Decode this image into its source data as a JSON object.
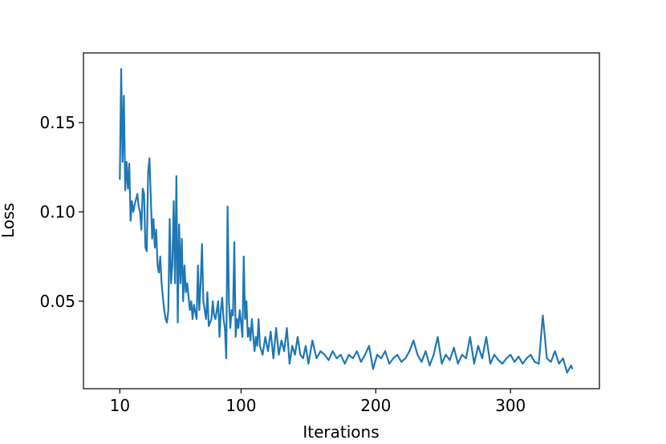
{
  "chart_data": {
    "type": "line",
    "x_label": "Iterations",
    "y_label": "Loss",
    "x": [
      10,
      11,
      12,
      13,
      14,
      15,
      16,
      17,
      18,
      19,
      20,
      21,
      23,
      24,
      25,
      26,
      27,
      28,
      29,
      30,
      31,
      32,
      33,
      34,
      35,
      36,
      37,
      38,
      39,
      40,
      41,
      42,
      43,
      44,
      45,
      46,
      47,
      48,
      49,
      50,
      51,
      52,
      53,
      54,
      55,
      56,
      57,
      58,
      59,
      60,
      62,
      63,
      64,
      65,
      67,
      68,
      69,
      70,
      71,
      72,
      73,
      74,
      75,
      76,
      77,
      78,
      79,
      80,
      81,
      83,
      84,
      85,
      86,
      87,
      88,
      89,
      90,
      91,
      92,
      93,
      94,
      95,
      96,
      97,
      98,
      99,
      100,
      101,
      102,
      103,
      104,
      105,
      106,
      107,
      108,
      110,
      111,
      112,
      113,
      114,
      116,
      118,
      120,
      122,
      124,
      126,
      128,
      130,
      132,
      134,
      136,
      138,
      140,
      142,
      144,
      146,
      148,
      150,
      153,
      156,
      159,
      162,
      165,
      168,
      171,
      174,
      177,
      180,
      183,
      186,
      189,
      192,
      195,
      198,
      201,
      204,
      207,
      210,
      213,
      216,
      219,
      222,
      225,
      228,
      231,
      234,
      237,
      240,
      243,
      246,
      249,
      252,
      255,
      258,
      261,
      264,
      267,
      270,
      273,
      276,
      279,
      282,
      285,
      288,
      291,
      294,
      297,
      300,
      303,
      306,
      309,
      312,
      315,
      318,
      321,
      324,
      327,
      330,
      333,
      336,
      339,
      342,
      345,
      346
    ],
    "series": [
      {
        "name": "Loss",
        "color": "#1f77b4",
        "values": [
          0.118,
          0.18,
          0.128,
          0.165,
          0.112,
          0.128,
          0.113,
          0.127,
          0.095,
          0.106,
          0.1,
          0.104,
          0.11,
          0.103,
          0.1,
          0.09,
          0.113,
          0.11,
          0.08,
          0.078,
          0.122,
          0.13,
          0.108,
          0.085,
          0.096,
          0.08,
          0.09,
          0.07,
          0.066,
          0.075,
          0.06,
          0.052,
          0.045,
          0.04,
          0.038,
          0.045,
          0.096,
          0.06,
          0.07,
          0.106,
          0.06,
          0.12,
          0.038,
          0.093,
          0.06,
          0.085,
          0.05,
          0.07,
          0.055,
          0.06,
          0.045,
          0.05,
          0.04,
          0.048,
          0.04,
          0.07,
          0.045,
          0.06,
          0.082,
          0.05,
          0.045,
          0.04,
          0.055,
          0.036,
          0.038,
          0.04,
          0.05,
          0.042,
          0.04,
          0.05,
          0.03,
          0.045,
          0.052,
          0.04,
          0.035,
          0.018,
          0.103,
          0.05,
          0.035,
          0.045,
          0.042,
          0.083,
          0.03,
          0.04,
          0.035,
          0.045,
          0.038,
          0.03,
          0.075,
          0.04,
          0.05,
          0.03,
          0.035,
          0.028,
          0.04,
          0.022,
          0.03,
          0.025,
          0.04,
          0.025,
          0.02,
          0.03,
          0.022,
          0.033,
          0.018,
          0.035,
          0.02,
          0.028,
          0.022,
          0.035,
          0.015,
          0.025,
          0.02,
          0.03,
          0.02,
          0.018,
          0.025,
          0.015,
          0.028,
          0.018,
          0.022,
          0.02,
          0.017,
          0.022,
          0.018,
          0.02,
          0.015,
          0.02,
          0.018,
          0.022,
          0.016,
          0.02,
          0.025,
          0.012,
          0.02,
          0.018,
          0.022,
          0.015,
          0.018,
          0.02,
          0.016,
          0.018,
          0.022,
          0.028,
          0.02,
          0.016,
          0.022,
          0.014,
          0.02,
          0.03,
          0.015,
          0.02,
          0.017,
          0.024,
          0.015,
          0.02,
          0.018,
          0.03,
          0.015,
          0.025,
          0.018,
          0.03,
          0.015,
          0.02,
          0.017,
          0.015,
          0.018,
          0.02,
          0.016,
          0.019,
          0.015,
          0.018,
          0.02,
          0.016,
          0.015,
          0.042,
          0.018,
          0.016,
          0.022,
          0.015,
          0.018,
          0.01,
          0.014,
          0.012
        ]
      }
    ],
    "xlim": [
      -17,
      366
    ],
    "xticks": [
      10,
      100,
      200,
      300
    ],
    "ylim": [
      0.001,
      0.189
    ],
    "yticks": [
      0.05,
      {
        "value": 0.1,
        "label": "0.10"
      },
      0.15
    ]
  }
}
